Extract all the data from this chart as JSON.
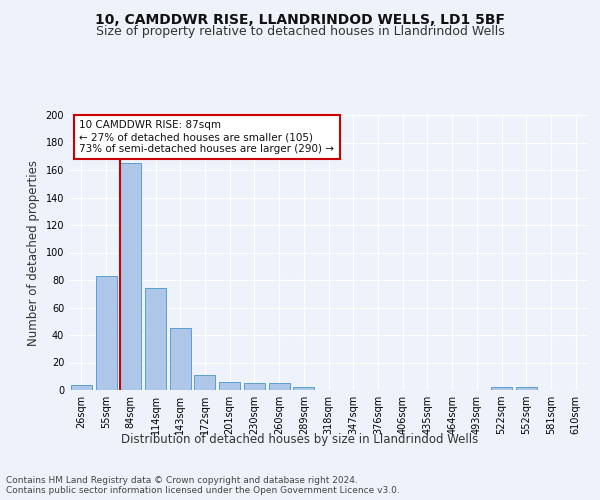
{
  "title1": "10, CAMDDWR RISE, LLANDRINDOD WELLS, LD1 5BF",
  "title2": "Size of property relative to detached houses in Llandrindod Wells",
  "xlabel": "Distribution of detached houses by size in Llandrindod Wells",
  "ylabel": "Number of detached properties",
  "categories": [
    "26sqm",
    "55sqm",
    "84sqm",
    "114sqm",
    "143sqm",
    "172sqm",
    "201sqm",
    "230sqm",
    "260sqm",
    "289sqm",
    "318sqm",
    "347sqm",
    "376sqm",
    "406sqm",
    "435sqm",
    "464sqm",
    "493sqm",
    "522sqm",
    "552sqm",
    "581sqm",
    "610sqm"
  ],
  "values": [
    4,
    83,
    165,
    74,
    45,
    11,
    6,
    5,
    5,
    2,
    0,
    0,
    0,
    0,
    0,
    0,
    0,
    2,
    2,
    0,
    0
  ],
  "bar_color": "#aec6e8",
  "bar_edgecolor": "#5a9fd4",
  "vline_x": 2,
  "vline_color": "#cc0000",
  "annotation_text": "10 CAMDDWR RISE: 87sqm\n← 27% of detached houses are smaller (105)\n73% of semi-detached houses are larger (290) →",
  "annotation_box_color": "#ffffff",
  "annotation_box_edgecolor": "#cc0000",
  "ylim": [
    0,
    200
  ],
  "yticks": [
    0,
    20,
    40,
    60,
    80,
    100,
    120,
    140,
    160,
    180,
    200
  ],
  "footer": "Contains HM Land Registry data © Crown copyright and database right 2024.\nContains public sector information licensed under the Open Government Licence v3.0.",
  "bg_color": "#eef2fa",
  "plot_bg_color": "#eef2fa",
  "title1_fontsize": 10,
  "title2_fontsize": 9,
  "xlabel_fontsize": 8.5,
  "ylabel_fontsize": 8.5,
  "footer_fontsize": 6.5,
  "tick_fontsize": 7,
  "annot_fontsize": 7.5
}
